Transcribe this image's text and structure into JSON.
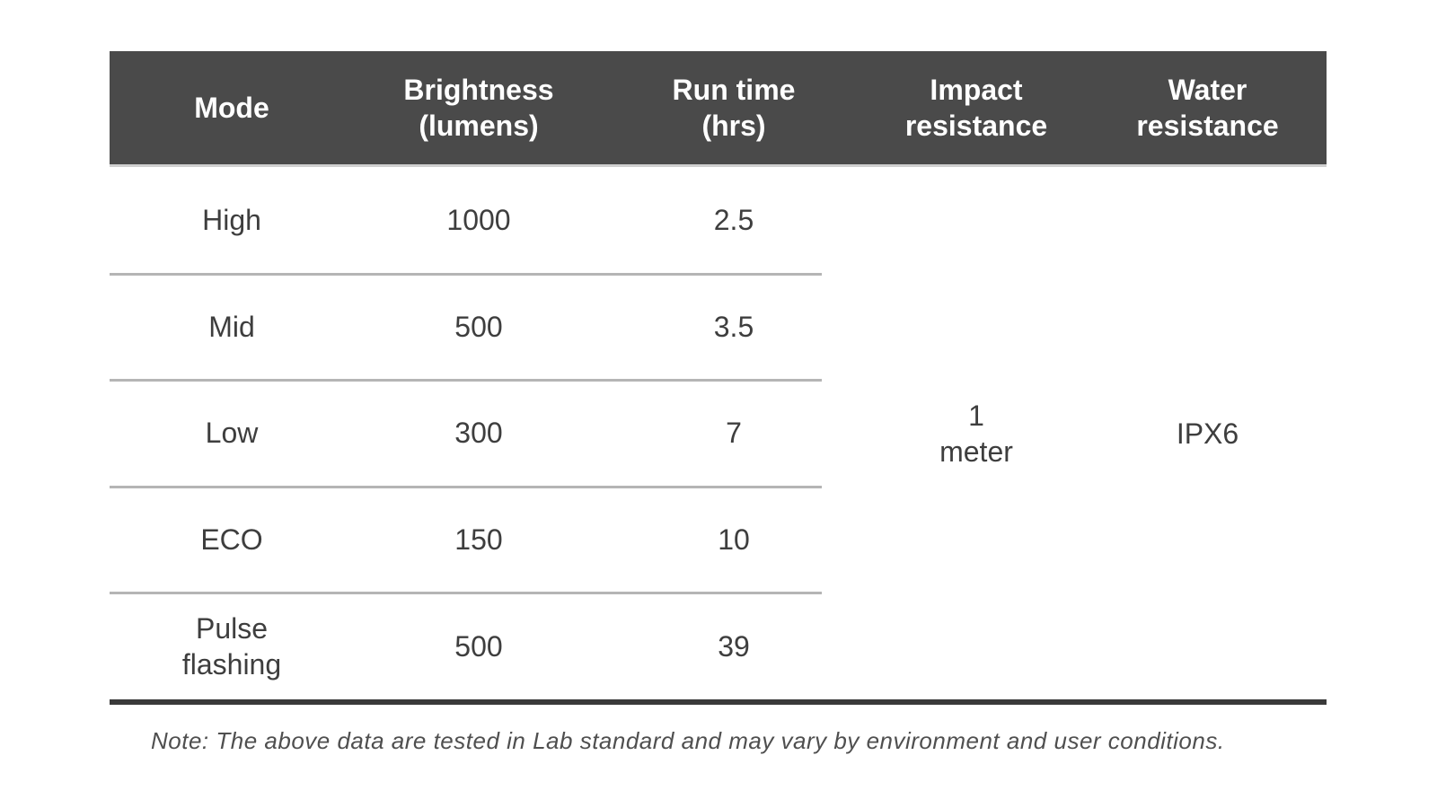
{
  "table": {
    "columns": [
      {
        "label": "Mode"
      },
      {
        "label": "Brightness\n(lumens)"
      },
      {
        "label": "Run time\n(hrs)"
      },
      {
        "label": "Impact\nresistance"
      },
      {
        "label": "Water\nresistance"
      }
    ],
    "rows": [
      {
        "mode": "High",
        "brightness": "1000",
        "run_time": "2.5"
      },
      {
        "mode": "Mid",
        "brightness": "500",
        "run_time": "3.5"
      },
      {
        "mode": "Low",
        "brightness": "300",
        "run_time": "7"
      },
      {
        "mode": "ECO",
        "brightness": "150",
        "run_time": "10"
      },
      {
        "mode": "Pulse\nflashing",
        "brightness": "500",
        "run_time": "39"
      }
    ],
    "merged": {
      "impact_resistance": "1\nmeter",
      "water_resistance": "IPX6"
    }
  },
  "note": "Note: The above data are tested in Lab standard and may vary by environment and user conditions.",
  "colors": {
    "header_background": "#4a4a4a",
    "header_text": "#ffffff",
    "body_text": "#3e3e3e",
    "row_divider": "#b5b5b5",
    "header_underline": "#cfcfcf",
    "bottom_rule": "#3a3a3a",
    "note_text": "#4f4f4f",
    "page_background": "#ffffff"
  },
  "chart_data": {
    "type": "table",
    "title": "",
    "columns": [
      "Mode",
      "Brightness (lumens)",
      "Run time (hrs)",
      "Impact resistance",
      "Water resistance"
    ],
    "rows": [
      {
        "mode": "High",
        "brightness_lumens": 1000,
        "run_time_hrs": 2.5
      },
      {
        "mode": "Mid",
        "brightness_lumens": 500,
        "run_time_hrs": 3.5
      },
      {
        "mode": "Low",
        "brightness_lumens": 300,
        "run_time_hrs": 7
      },
      {
        "mode": "ECO",
        "brightness_lumens": 150,
        "run_time_hrs": 10
      },
      {
        "mode": "Pulse flashing",
        "brightness_lumens": 500,
        "run_time_hrs": 39
      }
    ],
    "shared_values": {
      "impact_resistance": "1 meter",
      "water_resistance": "IPX6"
    },
    "note": "Note: The above data are tested in Lab standard and may vary by environment and user conditions.",
    "layout_hints": {
      "row_dividers_span": "first three columns only",
      "impact_and_water_cells": "merged vertically across all rows",
      "bottom_rule": "thick dark line across full table width"
    }
  }
}
